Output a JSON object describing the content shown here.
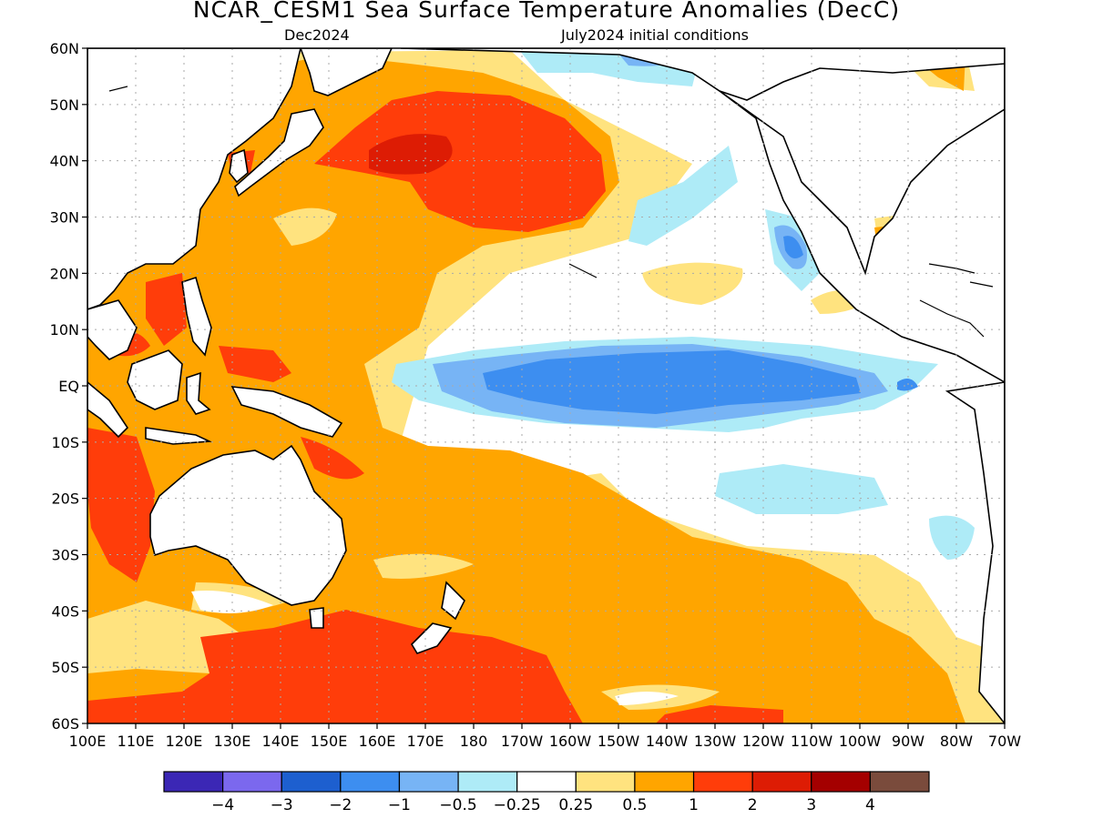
{
  "title": "NCAR_CESM1 Sea Surface Temperature Anomalies (DecC)",
  "subtitle_left": "Dec2024",
  "subtitle_right": "July2024 initial conditions",
  "lat_ticks": [
    "60N",
    "50N",
    "40N",
    "30N",
    "20N",
    "10N",
    "EQ",
    "10S",
    "20S",
    "30S",
    "40S",
    "50S",
    "60S"
  ],
  "lon_ticks": [
    "100E",
    "110E",
    "120E",
    "130E",
    "140E",
    "150E",
    "160E",
    "170E",
    "180",
    "170W",
    "160W",
    "150W",
    "140W",
    "130W",
    "120W",
    "110W",
    "100W",
    "90W",
    "80W",
    "70W"
  ],
  "colorbar": {
    "colors": [
      "#3b27b5",
      "#7b68ee",
      "#1d5fcf",
      "#3d8ef0",
      "#77b4f5",
      "#aeebf7",
      "#ffffff",
      "#ffe37f",
      "#ffa500",
      "#ff3d0a",
      "#dd1c04",
      "#a40000",
      "#7a4b3c"
    ],
    "labels": [
      "−4",
      "−3",
      "−2",
      "−1",
      "−0.5",
      "−0.25",
      "0.25",
      "0.5",
      "1",
      "2",
      "3",
      "4"
    ]
  }
}
